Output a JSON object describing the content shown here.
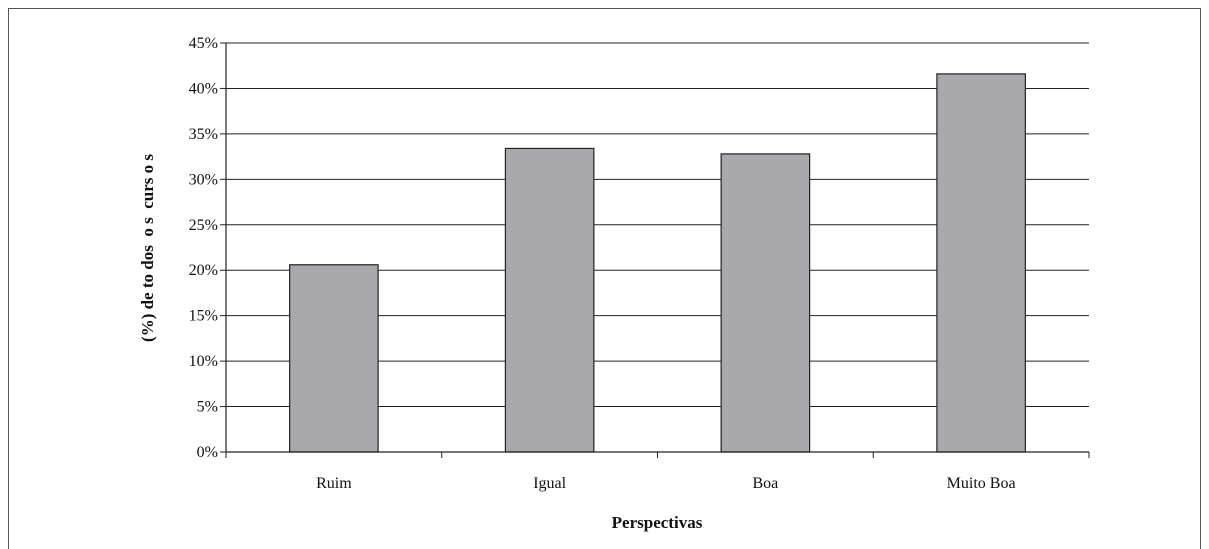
{
  "chart_data": {
    "type": "bar",
    "categories": [
      "Ruim",
      "Igual",
      "Boa",
      "Muito Boa"
    ],
    "values": [
      20.6,
      33.4,
      32.8,
      41.6
    ],
    "title": "",
    "xlabel": "Perspectivas",
    "ylabel": "(%) de to dos  o s  curs o s",
    "ylim": [
      0,
      45
    ],
    "ytick_step": 5,
    "ytick_suffix": "%",
    "grid": true,
    "colors": {
      "bar_fill": "#a9a9ad",
      "bar_stroke": "#222222",
      "grid": "#222222"
    }
  }
}
